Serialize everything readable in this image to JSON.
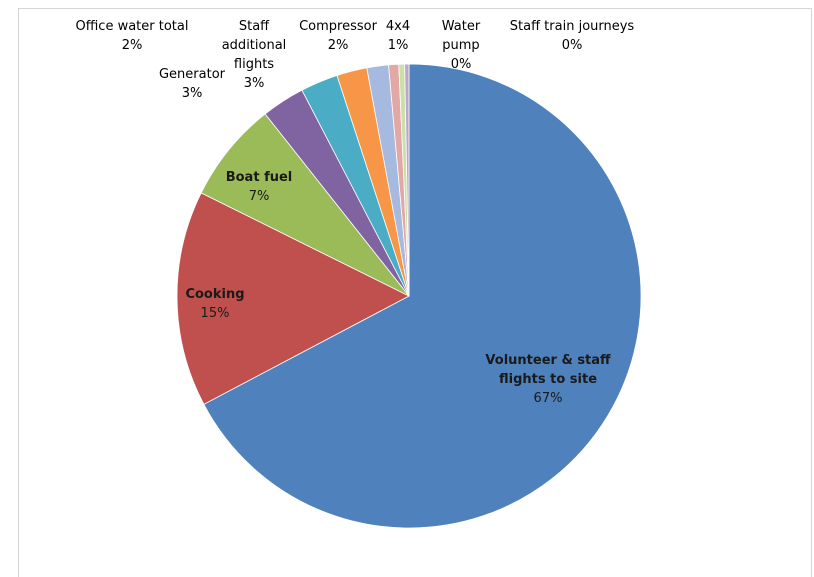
{
  "chart_data": {
    "type": "pie",
    "title": "",
    "start_angle_deg": 0,
    "direction": "clockwise",
    "legend": "none",
    "slices": [
      {
        "label": "Volunteer & staff flights to site",
        "value": 67,
        "pct_label": "67%",
        "color": "#4F81BD"
      },
      {
        "label": "Cooking",
        "value": 15,
        "pct_label": "15%",
        "color": "#C0504D"
      },
      {
        "label": "Boat fuel",
        "value": 7,
        "pct_label": "7%",
        "color": "#9BBB59"
      },
      {
        "label": "Generator",
        "value": 3,
        "pct_label": "3%",
        "color": "#8064A2"
      },
      {
        "label": "Staff additional flights",
        "value": 2.6,
        "pct_label": "3%",
        "color": "#4BACC6"
      },
      {
        "label": "Office water total",
        "value": 2.1,
        "pct_label": "2%",
        "color": "#F79646"
      },
      {
        "label": "Compressor",
        "value": 1.5,
        "pct_label": "2%",
        "color": "#A6B9DE"
      },
      {
        "label": "4x4",
        "value": 0.7,
        "pct_label": "1%",
        "color": "#E2A8A6"
      },
      {
        "label": "Water pump",
        "value": 0.4,
        "pct_label": "0%",
        "color": "#CBDFA8"
      },
      {
        "label": "Staff train journeys",
        "value": 0.3,
        "pct_label": "0%",
        "color": "#B7A8CC"
      }
    ]
  }
}
